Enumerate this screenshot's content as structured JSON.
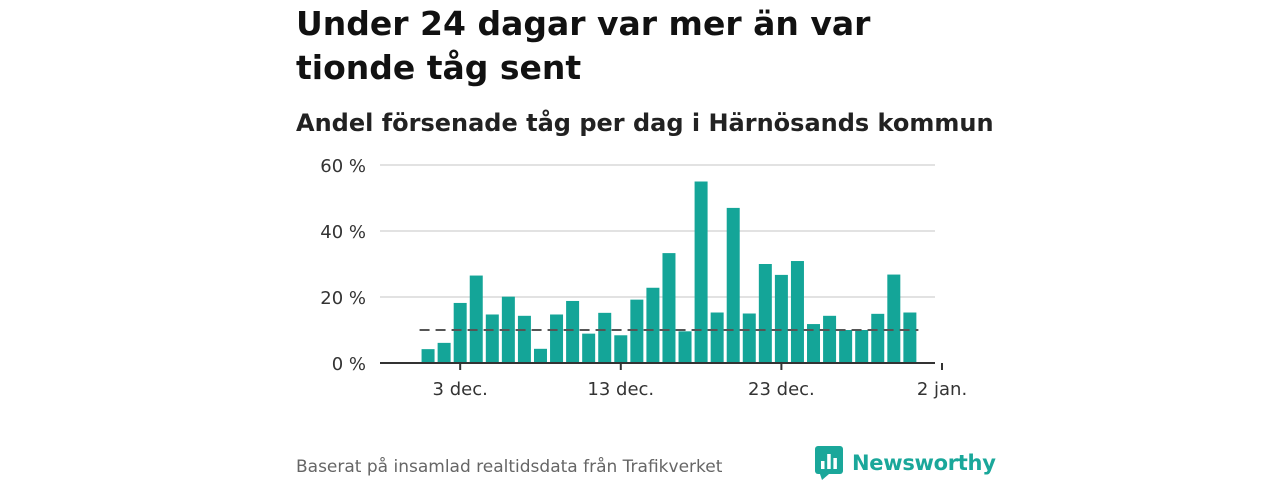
{
  "title": "Under 24 dagar var mer än var tionde tåg sent",
  "subtitle": "Andel försenade tåg per dag i Härnösands kommun",
  "source": "Baserat på insamlad realtidsdata från Trafikverket",
  "brand": "Newsworthy",
  "colors": {
    "bar": "#14a598",
    "reference_line": "#555555",
    "gridline": "#d9d9d9",
    "axis": "#333333",
    "brand": "#1aa79a"
  },
  "chart_data": {
    "type": "bar",
    "title": "Andel försenade tåg per dag i Härnösands kommun",
    "xlabel": "",
    "ylabel": "",
    "x_start": "2023-11-30",
    "x_end": "2024-01-02",
    "ylim": [
      0,
      60
    ],
    "y_ticks": [
      0,
      20,
      40,
      60
    ],
    "y_tick_labels": [
      "0 %",
      "20 %",
      "40 %",
      "60 %"
    ],
    "x_ticks": [
      "2023-12-03",
      "2023-12-13",
      "2023-12-23",
      "2024-01-02"
    ],
    "x_tick_labels": [
      "3 dec.",
      "13 dec.",
      "23 dec.",
      "2 jan."
    ],
    "grid": true,
    "reference_line": {
      "value": 10,
      "style": "dashed"
    },
    "categories": [
      "2023-12-01",
      "2023-12-02",
      "2023-12-03",
      "2023-12-04",
      "2023-12-05",
      "2023-12-06",
      "2023-12-07",
      "2023-12-08",
      "2023-12-09",
      "2023-12-10",
      "2023-12-11",
      "2023-12-12",
      "2023-12-13",
      "2023-12-14",
      "2023-12-15",
      "2023-12-16",
      "2023-12-17",
      "2023-12-18",
      "2023-12-19",
      "2023-12-20",
      "2023-12-21",
      "2023-12-22",
      "2023-12-23",
      "2023-12-24",
      "2023-12-25",
      "2023-12-26",
      "2023-12-27",
      "2023-12-28",
      "2023-12-29",
      "2023-12-30",
      "2023-12-31"
    ],
    "values": [
      4.2,
      6.1,
      18.2,
      26.5,
      14.7,
      20.1,
      14.3,
      4.3,
      14.7,
      18.8,
      8.9,
      15.2,
      8.4,
      19.2,
      22.8,
      33.3,
      9.6,
      55.0,
      15.3,
      47.0,
      15.0,
      30.0,
      26.7,
      30.9,
      11.8,
      14.3,
      10.0,
      10.0,
      14.9,
      26.8,
      15.3
    ]
  }
}
